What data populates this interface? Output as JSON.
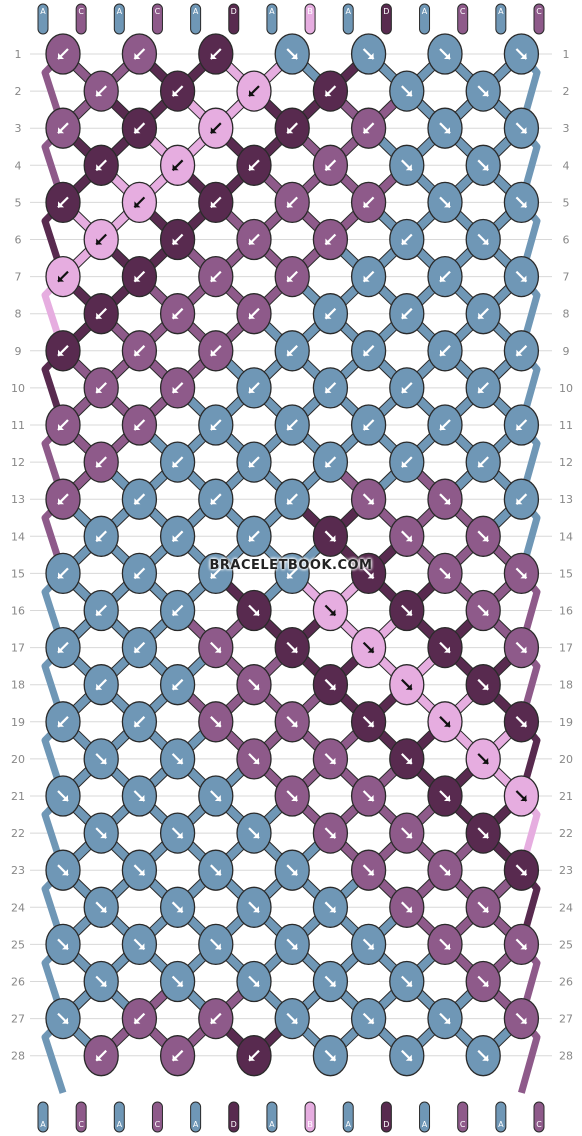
{
  "title_mark": "BRACELETBOOK.COM",
  "colors": {
    "A": "#6f97b6",
    "C": "#8e5a8a",
    "D": "#582a4f",
    "B": "#e6ade0",
    "outline": "#2a2a2a",
    "grid": "#d8d8d8",
    "label": "#888888"
  },
  "strings_top": [
    "A",
    "C",
    "A",
    "C",
    "A",
    "D",
    "A",
    "B",
    "A",
    "D",
    "A",
    "C",
    "A",
    "C"
  ],
  "strings_bottom": [
    "A",
    "C",
    "A",
    "C",
    "A",
    "D",
    "A",
    "B",
    "A",
    "D",
    "A",
    "C",
    "A",
    "C"
  ],
  "row_numbers": [
    "1",
    "2",
    "3",
    "4",
    "5",
    "6",
    "7",
    "8",
    "9",
    "10",
    "11",
    "12",
    "13",
    "14",
    "15",
    "16",
    "17",
    "18",
    "19",
    "20",
    "21",
    "22",
    "23",
    "24",
    "25",
    "26",
    "27",
    "28"
  ],
  "knots": [
    [
      [
        "C",
        "sw"
      ],
      [
        "C",
        "sw"
      ],
      [
        "D",
        "sw"
      ],
      [
        "A",
        "se"
      ],
      [
        "A",
        "se"
      ],
      [
        "A",
        "se"
      ],
      [
        "A",
        "se"
      ]
    ],
    [
      [
        "C",
        "sw"
      ],
      [
        "D",
        "sw"
      ],
      [
        "B",
        "sw"
      ],
      [
        "D",
        "sw"
      ],
      [
        "A",
        "se"
      ],
      [
        "A",
        "se"
      ]
    ],
    [
      [
        "C",
        "sw"
      ],
      [
        "D",
        "sw"
      ],
      [
        "B",
        "sw"
      ],
      [
        "D",
        "sw"
      ],
      [
        "C",
        "sw"
      ],
      [
        "A",
        "se"
      ],
      [
        "A",
        "se"
      ]
    ],
    [
      [
        "D",
        "sw"
      ],
      [
        "B",
        "sw"
      ],
      [
        "D",
        "sw"
      ],
      [
        "C",
        "sw"
      ],
      [
        "A",
        "se"
      ],
      [
        "A",
        "se"
      ]
    ],
    [
      [
        "D",
        "sw"
      ],
      [
        "B",
        "sw"
      ],
      [
        "D",
        "sw"
      ],
      [
        "C",
        "sw"
      ],
      [
        "C",
        "sw"
      ],
      [
        "A",
        "se"
      ],
      [
        "A",
        "se"
      ]
    ],
    [
      [
        "B",
        "sw"
      ],
      [
        "D",
        "sw"
      ],
      [
        "C",
        "sw"
      ],
      [
        "C",
        "sw"
      ],
      [
        "A",
        "sw"
      ],
      [
        "A",
        "se"
      ]
    ],
    [
      [
        "B",
        "sw"
      ],
      [
        "D",
        "sw"
      ],
      [
        "C",
        "sw"
      ],
      [
        "C",
        "sw"
      ],
      [
        "A",
        "sw"
      ],
      [
        "A",
        "sw"
      ],
      [
        "A",
        "se"
      ]
    ],
    [
      [
        "D",
        "sw"
      ],
      [
        "C",
        "sw"
      ],
      [
        "C",
        "sw"
      ],
      [
        "A",
        "sw"
      ],
      [
        "A",
        "sw"
      ],
      [
        "A",
        "sw"
      ]
    ],
    [
      [
        "D",
        "sw"
      ],
      [
        "C",
        "sw"
      ],
      [
        "C",
        "sw"
      ],
      [
        "A",
        "sw"
      ],
      [
        "A",
        "sw"
      ],
      [
        "A",
        "sw"
      ],
      [
        "A",
        "sw"
      ]
    ],
    [
      [
        "C",
        "sw"
      ],
      [
        "C",
        "sw"
      ],
      [
        "A",
        "sw"
      ],
      [
        "A",
        "sw"
      ],
      [
        "A",
        "sw"
      ],
      [
        "A",
        "sw"
      ]
    ],
    [
      [
        "C",
        "sw"
      ],
      [
        "C",
        "sw"
      ],
      [
        "A",
        "sw"
      ],
      [
        "A",
        "sw"
      ],
      [
        "A",
        "sw"
      ],
      [
        "A",
        "sw"
      ],
      [
        "A",
        "sw"
      ]
    ],
    [
      [
        "C",
        "sw"
      ],
      [
        "A",
        "sw"
      ],
      [
        "A",
        "sw"
      ],
      [
        "A",
        "sw"
      ],
      [
        "A",
        "sw"
      ],
      [
        "A",
        "sw"
      ]
    ],
    [
      [
        "C",
        "sw"
      ],
      [
        "A",
        "sw"
      ],
      [
        "A",
        "sw"
      ],
      [
        "A",
        "sw"
      ],
      [
        "C",
        "se"
      ],
      [
        "C",
        "se"
      ],
      [
        "A",
        "sw"
      ]
    ],
    [
      [
        "A",
        "sw"
      ],
      [
        "A",
        "sw"
      ],
      [
        "A",
        "sw"
      ],
      [
        "D",
        "se"
      ],
      [
        "C",
        "se"
      ],
      [
        "C",
        "se"
      ]
    ],
    [
      [
        "A",
        "sw"
      ],
      [
        "A",
        "sw"
      ],
      [
        "A",
        "sw"
      ],
      [
        "A",
        "sw"
      ],
      [
        "D",
        "se"
      ],
      [
        "C",
        "se"
      ],
      [
        "C",
        "se"
      ]
    ],
    [
      [
        "A",
        "sw"
      ],
      [
        "A",
        "sw"
      ],
      [
        "D",
        "se"
      ],
      [
        "B",
        "se"
      ],
      [
        "D",
        "se"
      ],
      [
        "C",
        "se"
      ]
    ],
    [
      [
        "A",
        "sw"
      ],
      [
        "A",
        "sw"
      ],
      [
        "C",
        "se"
      ],
      [
        "D",
        "se"
      ],
      [
        "B",
        "se"
      ],
      [
        "D",
        "se"
      ],
      [
        "C",
        "se"
      ]
    ],
    [
      [
        "A",
        "sw"
      ],
      [
        "A",
        "sw"
      ],
      [
        "C",
        "se"
      ],
      [
        "D",
        "se"
      ],
      [
        "B",
        "se"
      ],
      [
        "D",
        "se"
      ]
    ],
    [
      [
        "A",
        "sw"
      ],
      [
        "A",
        "sw"
      ],
      [
        "C",
        "se"
      ],
      [
        "C",
        "se"
      ],
      [
        "D",
        "se"
      ],
      [
        "B",
        "se"
      ],
      [
        "D",
        "se"
      ]
    ],
    [
      [
        "A",
        "se"
      ],
      [
        "A",
        "se"
      ],
      [
        "C",
        "se"
      ],
      [
        "C",
        "se"
      ],
      [
        "D",
        "se"
      ],
      [
        "B",
        "se"
      ]
    ],
    [
      [
        "A",
        "se"
      ],
      [
        "A",
        "se"
      ],
      [
        "A",
        "se"
      ],
      [
        "C",
        "se"
      ],
      [
        "C",
        "se"
      ],
      [
        "D",
        "se"
      ],
      [
        "B",
        "se"
      ]
    ],
    [
      [
        "A",
        "se"
      ],
      [
        "A",
        "se"
      ],
      [
        "A",
        "se"
      ],
      [
        "C",
        "se"
      ],
      [
        "C",
        "se"
      ],
      [
        "D",
        "se"
      ]
    ],
    [
      [
        "A",
        "se"
      ],
      [
        "A",
        "se"
      ],
      [
        "A",
        "se"
      ],
      [
        "A",
        "se"
      ],
      [
        "C",
        "se"
      ],
      [
        "C",
        "se"
      ],
      [
        "D",
        "se"
      ]
    ],
    [
      [
        "A",
        "se"
      ],
      [
        "A",
        "se"
      ],
      [
        "A",
        "se"
      ],
      [
        "A",
        "se"
      ],
      [
        "C",
        "se"
      ],
      [
        "C",
        "se"
      ]
    ],
    [
      [
        "A",
        "se"
      ],
      [
        "A",
        "se"
      ],
      [
        "A",
        "se"
      ],
      [
        "A",
        "se"
      ],
      [
        "A",
        "se"
      ],
      [
        "C",
        "se"
      ],
      [
        "C",
        "se"
      ]
    ],
    [
      [
        "A",
        "se"
      ],
      [
        "A",
        "se"
      ],
      [
        "A",
        "se"
      ],
      [
        "A",
        "se"
      ],
      [
        "A",
        "se"
      ],
      [
        "C",
        "se"
      ]
    ],
    [
      [
        "A",
        "se"
      ],
      [
        "C",
        "sw"
      ],
      [
        "C",
        "sw"
      ],
      [
        "A",
        "se"
      ],
      [
        "A",
        "se"
      ],
      [
        "A",
        "se"
      ],
      [
        "C",
        "se"
      ]
    ],
    [
      [
        "C",
        "sw"
      ],
      [
        "C",
        "sw"
      ],
      [
        "D",
        "sw"
      ],
      [
        "A",
        "se"
      ],
      [
        "A",
        "se"
      ],
      [
        "A",
        "se"
      ]
    ]
  ]
}
